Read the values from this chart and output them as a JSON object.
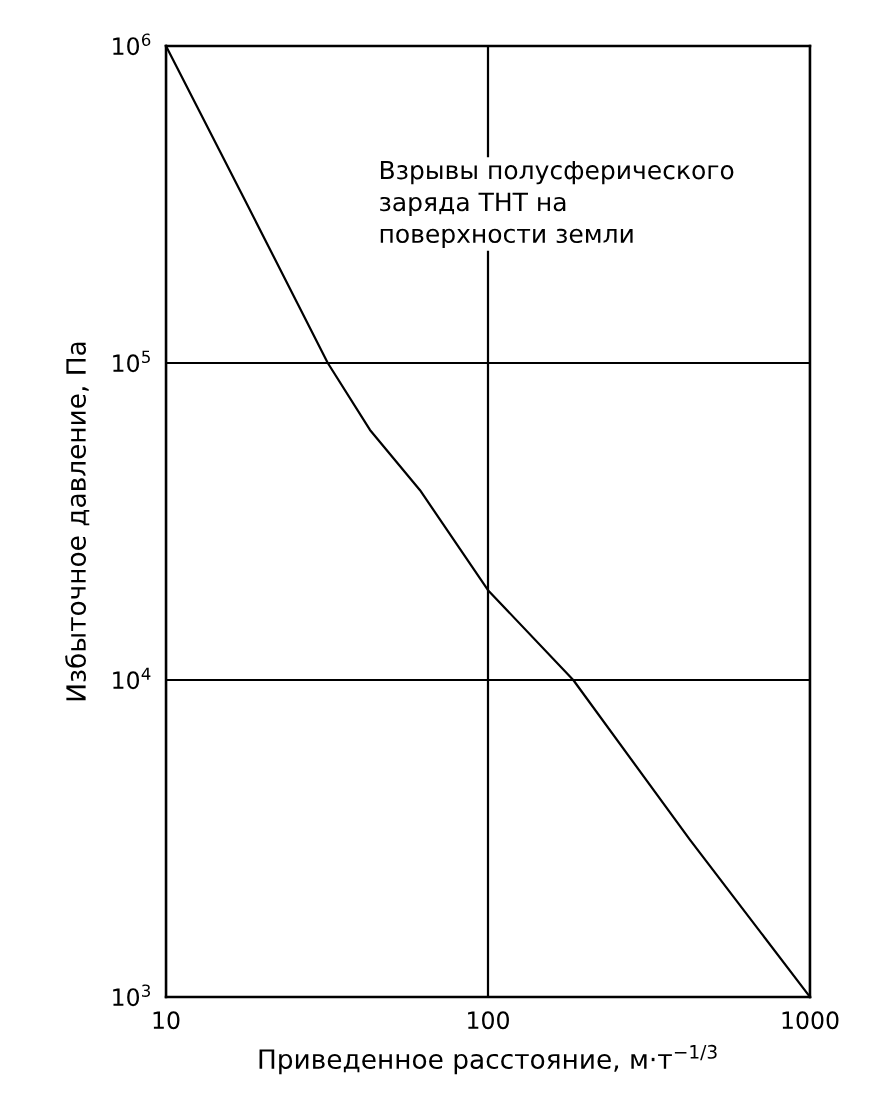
{
  "chart_data": {
    "type": "line",
    "xlabel": "Приведенное расстояние, м·т$^{−1/3}$",
    "ylabel": "Избыточное давление, Па",
    "annotations": [
      "Взрывы полусферического\nзаряда ТНТ на\nповерхности земли"
    ],
    "log": "xy",
    "xlim": [
      10,
      1000
    ],
    "ylim": [
      1000,
      1000000
    ],
    "xticks": [
      10,
      100,
      1000
    ],
    "yticks": [
      {
        "value": 1000,
        "label": "10$^{3}$"
      },
      {
        "value": 10000,
        "label": "10$^{4}$"
      },
      {
        "value": 100000,
        "label": "10$^{5}$"
      },
      {
        "value": 1000000,
        "label": "10$^{6}$"
      }
    ],
    "grid": true,
    "marker": "none",
    "line_style": "solid",
    "series": [
      {
        "color": "#000000",
        "x": [
          10,
          17.9,
          31.8,
          43,
          61.5,
          100,
          184,
          424,
          1000
        ],
        "values": [
          1000000,
          315000,
          100000,
          61500,
          39700,
          19200,
          10000,
          3130,
          1000
        ]
      }
    ]
  }
}
